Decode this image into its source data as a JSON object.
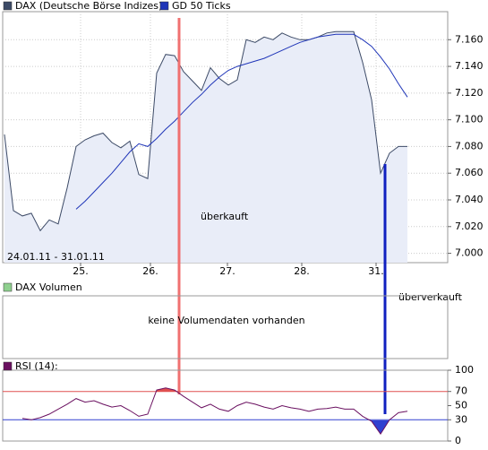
{
  "chart_data": [
    {
      "type": "line",
      "series": [
        {
          "name": "DAX (Deutsche Börse Indizes)",
          "color": "#3c4a66",
          "fill": "#e9edf8",
          "values": [
            7089,
            7032,
            7028,
            7030,
            7017,
            7025,
            7022,
            7049,
            7080,
            7085,
            7088,
            7090,
            7083,
            7079,
            7084,
            7059,
            7056,
            7135,
            7149,
            7148,
            7136,
            7129,
            7122,
            7139,
            7131,
            7126,
            7130,
            7160,
            7158,
            7162,
            7160,
            7165,
            7162,
            7160,
            7160,
            7162,
            7165,
            7166,
            7166,
            7166,
            7143,
            7115,
            7060,
            7075,
            7080,
            7080
          ]
        },
        {
          "name": "GD 50 Ticks",
          "color": "#1f35b8",
          "values": [
            null,
            null,
            null,
            null,
            null,
            null,
            null,
            null,
            7033,
            7039,
            7046,
            7053,
            7060,
            7068,
            7076,
            7082,
            7080,
            7086,
            7093,
            7099,
            7106,
            7113,
            7119,
            7126,
            7132,
            7137,
            7140,
            7142,
            7144,
            7146,
            7149,
            7152,
            7155,
            7158,
            7160,
            7162,
            7163,
            7164,
            7164,
            7164,
            7160,
            7155,
            7147,
            7138,
            7127,
            7117
          ]
        }
      ],
      "x": [
        0,
        1,
        2,
        3,
        4,
        5,
        6,
        7,
        8,
        9,
        10,
        11,
        12,
        13,
        14,
        15,
        16,
        17,
        18,
        19,
        20,
        21,
        22,
        23,
        24,
        25,
        26,
        27,
        28,
        29,
        30,
        31,
        32,
        33,
        34,
        35,
        36,
        37,
        38,
        39,
        40,
        41,
        42,
        43,
        44,
        45
      ],
      "xlim": [
        -0.2,
        49.5
      ],
      "xticks": [
        {
          "value": 8.5,
          "label": "25."
        },
        {
          "value": 16.3,
          "label": "26."
        },
        {
          "value": 24.9,
          "label": "27."
        },
        {
          "value": 33.2,
          "label": "28."
        },
        {
          "value": 41.5,
          "label": "31."
        }
      ],
      "ylim": [
        6993,
        7181
      ],
      "yticks": [
        {
          "value": 7000,
          "label": "7.000"
        },
        {
          "value": 7020,
          "label": "7.020"
        },
        {
          "value": 7040,
          "label": "7.040"
        },
        {
          "value": 7060,
          "label": "7.060"
        },
        {
          "value": 7080,
          "label": "7.080"
        },
        {
          "value": 7100,
          "label": "7.100"
        },
        {
          "value": 7120,
          "label": "7.120"
        },
        {
          "value": 7140,
          "label": "7.140"
        },
        {
          "value": 7160,
          "label": "7.160"
        }
      ],
      "grid": true,
      "date_range": "24.01.11 - 31.01.11",
      "annotations": [
        "überkauft",
        "überverkauft"
      ]
    },
    {
      "type": "message",
      "legend": "DAX Volumen",
      "legend_color": "#8fd08f",
      "message": "keine Volumendaten vorhanden"
    },
    {
      "type": "line",
      "series": [
        {
          "name": "RSI (14):",
          "color": "#6a1060",
          "values": [
            null,
            null,
            32,
            30,
            33,
            38,
            45,
            52,
            60,
            55,
            57,
            52,
            48,
            50,
            43,
            35,
            38,
            72,
            75,
            72,
            63,
            55,
            47,
            52,
            45,
            42,
            50,
            55,
            52,
            48,
            45,
            50,
            47,
            45,
            42,
            45,
            46,
            48,
            45,
            45,
            35,
            28,
            10,
            30,
            40,
            42
          ]
        }
      ],
      "x": [
        0,
        1,
        2,
        3,
        4,
        5,
        6,
        7,
        8,
        9,
        10,
        11,
        12,
        13,
        14,
        15,
        16,
        17,
        18,
        19,
        20,
        21,
        22,
        23,
        24,
        25,
        26,
        27,
        28,
        29,
        30,
        31,
        32,
        33,
        34,
        35,
        36,
        37,
        38,
        39,
        40,
        41,
        42,
        43,
        44,
        45
      ],
      "xlim": [
        -0.2,
        49.5
      ],
      "ylim": [
        0,
        100
      ],
      "yticks": [
        0,
        30,
        50,
        70,
        100
      ],
      "levels": [
        {
          "value": 70,
          "color": "#e05050"
        },
        {
          "value": 30,
          "color": "#3040d0"
        }
      ]
    }
  ]
}
